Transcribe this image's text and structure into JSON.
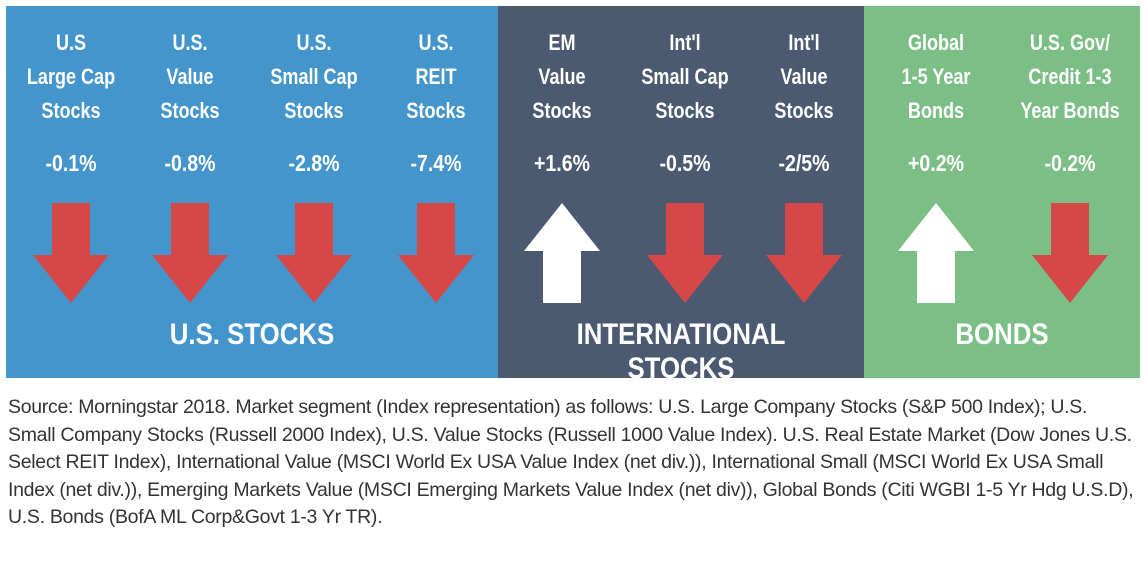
{
  "colors": {
    "us_stocks": "#4495cc",
    "international_stocks": "#4b5a70",
    "bonds": "#7cbf86",
    "down_arrow": "#d64747",
    "up_arrow": "#ffffff"
  },
  "sections": [
    {
      "title": "U.S. STOCKS",
      "columns": [
        {
          "label": "U.S\nLarge Cap\nStocks",
          "change": "-0.1%",
          "direction": "down"
        },
        {
          "label": "U.S.\nValue\nStocks",
          "change": "-0.8%",
          "direction": "down"
        },
        {
          "label": "U.S.\nSmall Cap\nStocks",
          "change": "-2.8%",
          "direction": "down"
        },
        {
          "label": "U.S.\nREIT\nStocks",
          "change": "-7.4%",
          "direction": "down"
        }
      ]
    },
    {
      "title": "INTERNATIONAL STOCKS",
      "columns": [
        {
          "label": "EM\nValue\nStocks",
          "change": "+1.6%",
          "direction": "up"
        },
        {
          "label": "Int'l\nSmall Cap\nStocks",
          "change": "-0.5%",
          "direction": "down"
        },
        {
          "label": "Int'l\nValue\nStocks",
          "change": "-2/5%",
          "direction": "down"
        }
      ]
    },
    {
      "title": "BONDS",
      "columns": [
        {
          "label": "Global\n1-5 Year\nBonds",
          "change": "+0.2%",
          "direction": "up"
        },
        {
          "label": "U.S. Gov/\nCredit 1-3\nYear Bonds",
          "change": "-0.2%",
          "direction": "down"
        }
      ]
    }
  ],
  "source_note": "Source: Morningstar 2018. Market segment (Index representation) as follows: U.S. Large Company Stocks (S&P 500 Index); U.S. Small Company Stocks (Russell 2000 Index), U.S. Value Stocks (Russell 1000 Value Index). U.S. Real Estate Market (Dow Jones U.S. Select REIT Index), International Value (MSCI World Ex USA Value Index (net div.)), International Small (MSCI World Ex USA Small Index (net div.)), Emerging Markets Value (MSCI Emerging Markets Value Index (net div)), Global Bonds (Citi WGBI 1-5 Yr Hdg U.S.D), U.S. Bonds (BofA ML Corp&Govt 1-3 Yr TR)."
}
